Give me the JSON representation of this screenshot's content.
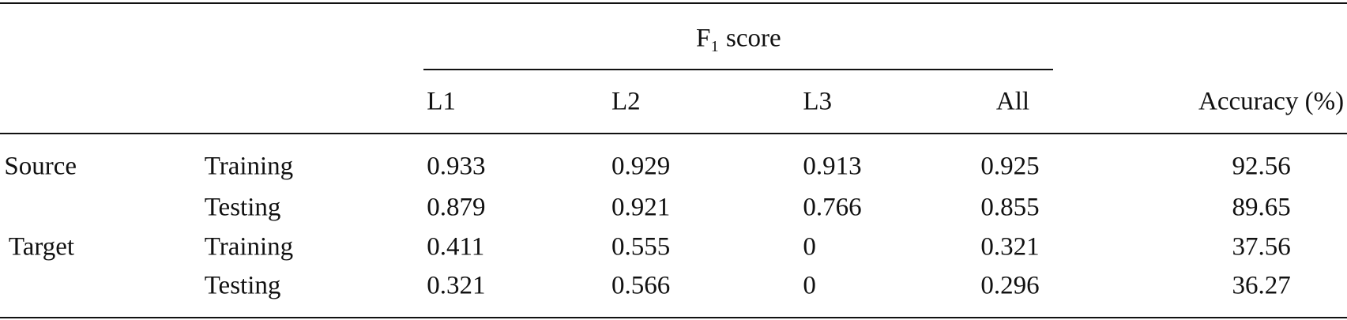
{
  "table": {
    "f1_header": "F₁ score",
    "columns": [
      "L1",
      "L2",
      "L3",
      "All"
    ],
    "accuracy_header": "Accuracy (%)",
    "groups": [
      {
        "name": "Source",
        "rows": [
          {
            "split": "Training",
            "f1": [
              "0.933",
              "0.929",
              "0.913",
              "0.925"
            ],
            "accuracy": "92.56"
          },
          {
            "split": "Testing",
            "f1": [
              "0.879",
              "0.921",
              "0.766",
              "0.855"
            ],
            "accuracy": "89.65"
          }
        ]
      },
      {
        "name": "Target",
        "rows": [
          {
            "split": "Training",
            "f1": [
              "0.411",
              "0.555",
              "0",
              "0.321"
            ],
            "accuracy": "37.56"
          },
          {
            "split": "Testing",
            "f1": [
              "0.321",
              "0.566",
              "0",
              "0.296"
            ],
            "accuracy": "36.27"
          }
        ]
      }
    ]
  }
}
